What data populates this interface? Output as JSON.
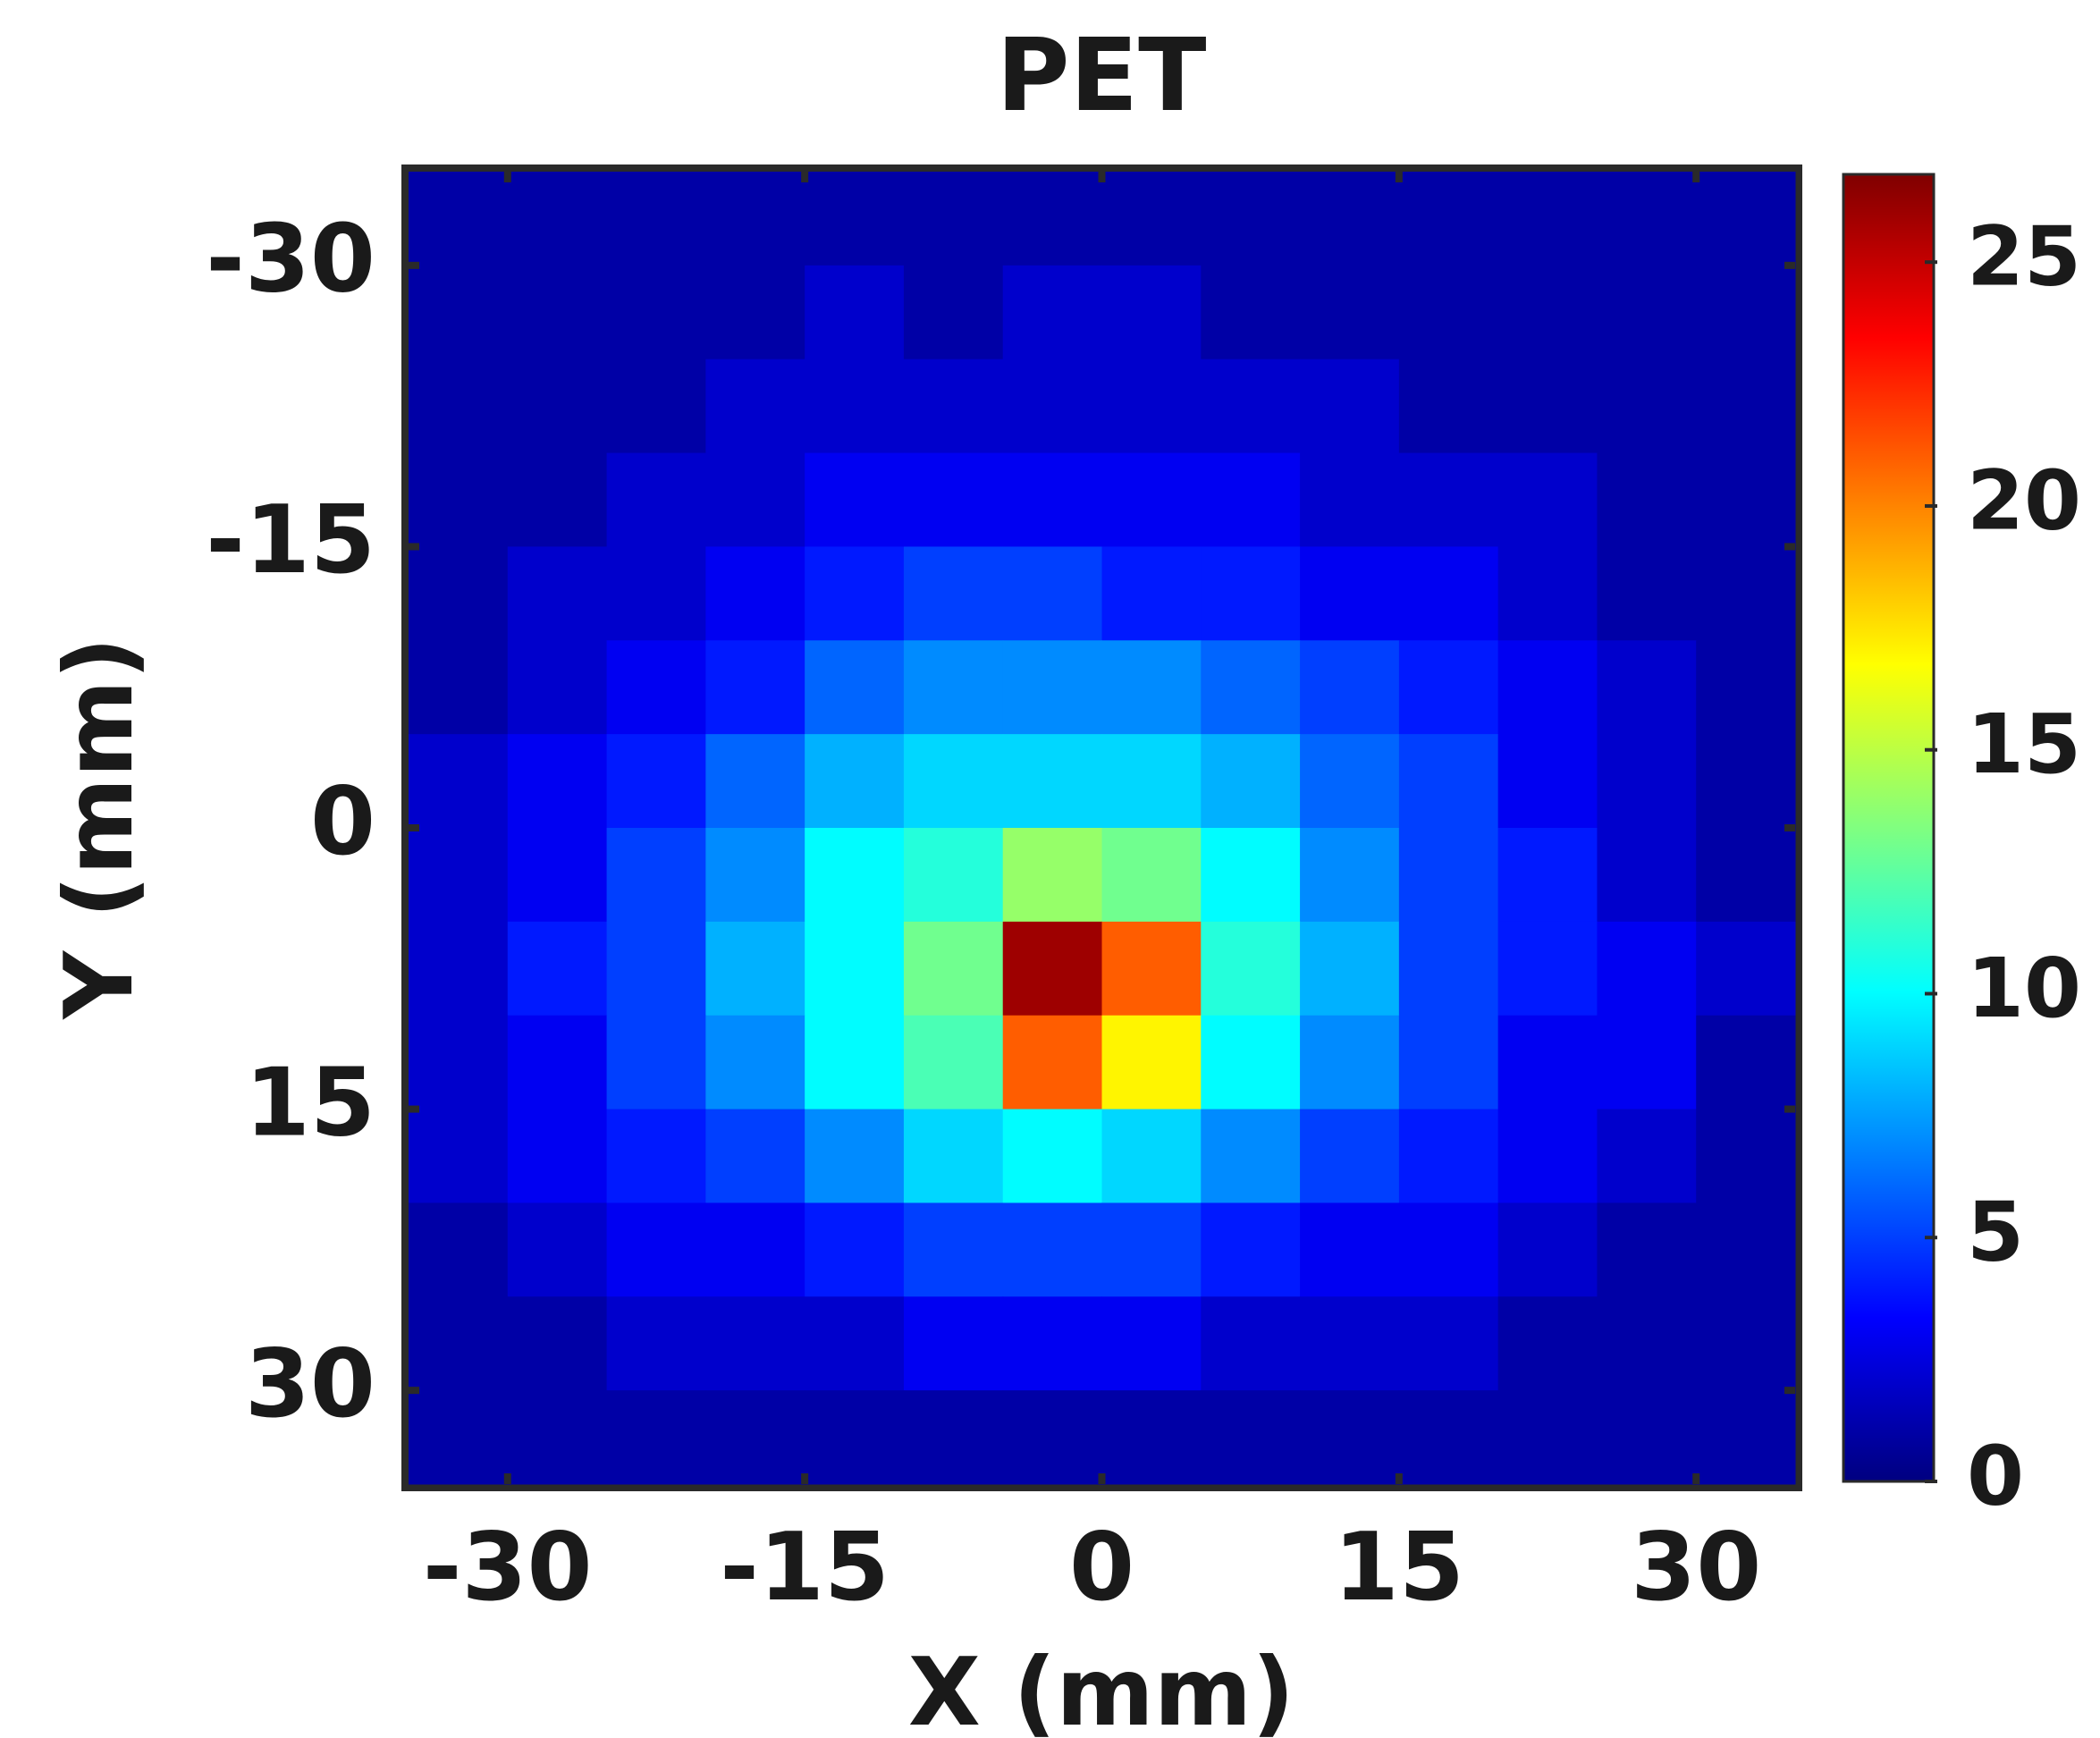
{
  "chart_data": {
    "type": "heatmap",
    "title": "PET",
    "x_label": "X (mm)",
    "y_label": "Y (mm)",
    "x": [
      -32.5,
      -27.5,
      -22.5,
      -17.5,
      -12.5,
      -7.5,
      -2.5,
      2.5,
      7.5,
      12.5,
      17.5,
      22.5,
      27.5,
      32.5
    ],
    "y": [
      -32.5,
      -27.5,
      -22.5,
      -17.5,
      -12.5,
      -7.5,
      -2.5,
      2.5,
      7.5,
      12.5,
      17.5,
      22.5,
      27.5,
      32.5
    ],
    "z": [
      [
        1,
        1,
        1,
        1,
        1,
        1,
        1,
        1,
        1,
        1,
        1,
        1,
        1,
        1
      ],
      [
        1,
        1,
        1,
        1,
        2,
        1,
        2,
        2,
        1,
        1,
        1,
        1,
        1,
        1
      ],
      [
        1,
        1,
        1,
        2,
        2,
        2,
        2,
        2,
        2,
        2,
        1,
        1,
        1,
        1
      ],
      [
        1,
        1,
        2,
        2,
        3,
        3,
        3,
        3,
        3,
        2,
        2,
        2,
        1,
        1
      ],
      [
        1,
        2,
        2,
        3,
        4,
        5,
        5,
        4,
        4,
        3,
        3,
        2,
        1,
        1
      ],
      [
        1,
        2,
        3,
        4,
        6,
        7,
        7,
        7,
        6,
        5,
        4,
        3,
        2,
        1
      ],
      [
        2,
        3,
        4,
        6,
        8,
        9,
        9,
        9,
        8,
        6,
        5,
        3,
        2,
        1
      ],
      [
        2,
        3,
        5,
        7,
        10,
        11,
        14,
        13,
        10,
        7,
        5,
        4,
        2,
        1
      ],
      [
        2,
        4,
        5,
        8,
        10,
        13,
        26,
        21,
        11,
        8,
        5,
        4,
        3,
        2
      ],
      [
        2,
        3,
        5,
        7,
        10,
        12,
        21,
        17,
        10,
        7,
        5,
        3,
        3,
        1
      ],
      [
        2,
        3,
        4,
        5,
        7,
        9,
        10,
        9,
        7,
        5,
        4,
        3,
        2,
        1
      ],
      [
        1,
        2,
        3,
        3,
        4,
        5,
        5,
        5,
        4,
        3,
        3,
        2,
        1,
        1
      ],
      [
        1,
        1,
        2,
        2,
        2,
        3,
        3,
        3,
        2,
        2,
        2,
        1,
        1,
        1
      ],
      [
        1,
        1,
        1,
        1,
        1,
        1,
        1,
        1,
        1,
        1,
        1,
        1,
        1,
        1
      ]
    ],
    "xlim": [
      -35,
      35
    ],
    "ylim": [
      -35,
      35
    ],
    "y_reversed": true,
    "xticks": [
      -30,
      -15,
      0,
      15,
      30
    ],
    "yticks": [
      -30,
      -15,
      0,
      15,
      30
    ],
    "colormap": "jet",
    "clim": [
      0,
      26.8
    ],
    "cticks": [
      0,
      5,
      10,
      15,
      20,
      25
    ]
  }
}
